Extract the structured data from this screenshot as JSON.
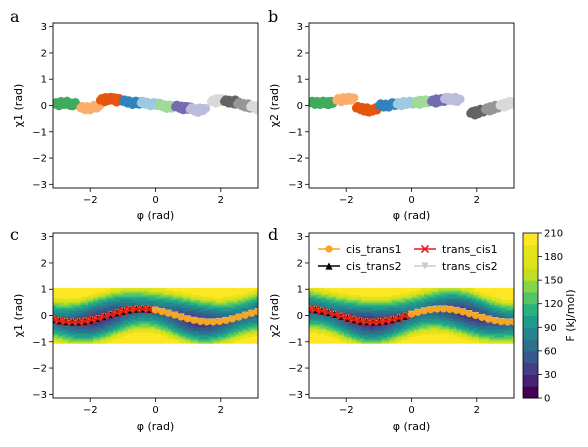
{
  "figure": {
    "panels": [
      {
        "letter": "a",
        "xlabel": "φ (rad)",
        "ylabel": "χ1 (rad)"
      },
      {
        "letter": "b",
        "xlabel": "φ (rad)",
        "ylabel": "χ2 (rad)"
      },
      {
        "letter": "c",
        "xlabel": "φ (rad)",
        "ylabel": "χ1 (rad)"
      },
      {
        "letter": "d",
        "xlabel": "φ (rad)",
        "ylabel": "χ2 (rad)"
      }
    ],
    "colorbar": {
      "label": "F (kJ/mol)",
      "ticks": [
        "0",
        "30",
        "60",
        "90",
        "120",
        "150",
        "180",
        "210"
      ],
      "levels": [
        0,
        15,
        30,
        45,
        60,
        75,
        90,
        105,
        120,
        135,
        150,
        165,
        180,
        195,
        210
      ]
    },
    "colors": {
      "cis_trans1": "#f5a623",
      "cis_trans2": "#000000",
      "trans_cis1": "#e41a1c",
      "trans_cis2": "#cccccc"
    }
  },
  "chart_data": [
    {
      "panel": "a",
      "type": "scatter",
      "x_ticks": [
        "−2",
        "0",
        "2"
      ],
      "y_ticks": [
        "−3",
        "−2",
        "−1",
        "0",
        "1",
        "2",
        "3"
      ],
      "xlim": [
        -3.14,
        3.14
      ],
      "ylim": [
        -3.14,
        3.14
      ],
      "clusters": [
        {
          "color": "#41ab5d",
          "x": [
            -3.0,
            -2.8,
            -2.6,
            -2.5
          ],
          "y": [
            0.05,
            0.1,
            0.05,
            0.05
          ]
        },
        {
          "color": "#fdae6b",
          "x": [
            -2.2,
            -2.0,
            -1.8
          ],
          "y": [
            -0.1,
            -0.1,
            -0.05
          ]
        },
        {
          "color": "#e6550d",
          "x": [
            -1.6,
            -1.45,
            -1.3,
            -1.15
          ],
          "y": [
            0.2,
            0.25,
            0.25,
            0.2
          ]
        },
        {
          "color": "#3182bd",
          "x": [
            -0.9,
            -0.7,
            -0.5
          ],
          "y": [
            0.15,
            0.1,
            0.1
          ]
        },
        {
          "color": "#9ecae1",
          "x": [
            -0.35,
            -0.15,
            0.05
          ],
          "y": [
            0.1,
            0.05,
            0.05
          ]
        },
        {
          "color": "#a1d99b",
          "x": [
            0.2,
            0.35,
            0.5
          ],
          "y": [
            0.0,
            -0.05,
            -0.05
          ]
        },
        {
          "color": "#756bb1",
          "x": [
            0.7,
            0.85,
            1.0
          ],
          "y": [
            -0.05,
            -0.1,
            -0.1
          ]
        },
        {
          "color": "#bcbddc",
          "x": [
            1.15,
            1.3,
            1.45
          ],
          "y": [
            -0.15,
            -0.2,
            -0.15
          ]
        },
        {
          "color": "#d9d9d9",
          "x": [
            1.8,
            1.95,
            2.05
          ],
          "y": [
            0.15,
            0.2,
            0.2
          ]
        },
        {
          "color": "#636363",
          "x": [
            2.2,
            2.35,
            2.45
          ],
          "y": [
            0.15,
            0.15,
            0.1
          ]
        },
        {
          "color": "#969696",
          "x": [
            2.6,
            2.75,
            2.9
          ],
          "y": [
            0.05,
            0.0,
            -0.05
          ]
        },
        {
          "color": "#d9d9d9",
          "x": [
            3.0,
            3.1
          ],
          "y": [
            -0.05,
            -0.1
          ]
        }
      ]
    },
    {
      "panel": "b",
      "type": "scatter",
      "x_ticks": [
        "−2",
        "0",
        "2"
      ],
      "y_ticks": [
        "−3",
        "−2",
        "−1",
        "0",
        "1",
        "2",
        "3"
      ],
      "xlim": [
        -3.14,
        3.14
      ],
      "ylim": [
        -3.14,
        3.14
      ],
      "clusters": [
        {
          "color": "#41ab5d",
          "x": [
            -3.0,
            -2.8,
            -2.6,
            -2.5
          ],
          "y": [
            0.1,
            0.1,
            0.1,
            0.1
          ]
        },
        {
          "color": "#fdae6b",
          "x": [
            -2.2,
            -2.0,
            -1.85
          ],
          "y": [
            0.2,
            0.25,
            0.25
          ]
        },
        {
          "color": "#e6550d",
          "x": [
            -1.6,
            -1.45,
            -1.3,
            -1.15
          ],
          "y": [
            -0.1,
            -0.15,
            -0.2,
            -0.15
          ]
        },
        {
          "color": "#3182bd",
          "x": [
            -0.9,
            -0.7,
            -0.5
          ],
          "y": [
            0.0,
            0.0,
            0.05
          ]
        },
        {
          "color": "#9ecae1",
          "x": [
            -0.35,
            -0.15,
            0.05
          ],
          "y": [
            0.05,
            0.1,
            0.1
          ]
        },
        {
          "color": "#a1d99b",
          "x": [
            0.2,
            0.35,
            0.5
          ],
          "y": [
            0.1,
            0.15,
            0.15
          ]
        },
        {
          "color": "#756bb1",
          "x": [
            0.7,
            0.85,
            1.0
          ],
          "y": [
            0.15,
            0.2,
            0.2
          ]
        },
        {
          "color": "#bcbddc",
          "x": [
            1.1,
            1.25,
            1.4
          ],
          "y": [
            0.25,
            0.25,
            0.2
          ]
        },
        {
          "color": "#636363",
          "x": [
            1.9,
            2.05,
            2.2
          ],
          "y": [
            -0.3,
            -0.25,
            -0.2
          ]
        },
        {
          "color": "#969696",
          "x": [
            2.35,
            2.5,
            2.65
          ],
          "y": [
            -0.15,
            -0.1,
            -0.05
          ]
        },
        {
          "color": "#d9d9d9",
          "x": [
            2.8,
            2.95,
            3.1
          ],
          "y": [
            0.0,
            0.05,
            0.1
          ]
        }
      ]
    },
    {
      "panel": "c",
      "type": "line",
      "x_ticks": [
        "−2",
        "0",
        "2"
      ],
      "y_ticks": [
        "−3",
        "−2",
        "−1",
        "0",
        "1",
        "2",
        "3"
      ],
      "xlim": [
        -3.14,
        3.14
      ],
      "ylim": [
        -3.14,
        3.14
      ],
      "contour_phase": 0.5,
      "series": [
        {
          "name": "cis_trans1",
          "marker": "circle",
          "phase": 0.5,
          "x_range": [
            -3.14,
            0.0
          ]
        },
        {
          "name": "cis_trans2",
          "marker": "triangle",
          "phase": 0.5,
          "x_range": [
            -3.14,
            0.0
          ]
        },
        {
          "name": "trans_cis1",
          "marker": "x",
          "phase": 0.5,
          "x_range": [
            -3.14,
            0.0
          ]
        },
        {
          "name": "trans_cis2",
          "marker": "tri_down",
          "phase": 0.5,
          "x_range": [
            0.0,
            3.14
          ]
        },
        {
          "name": "cis_trans1",
          "marker": "circle",
          "phase": 0.5,
          "x_range": [
            0.0,
            3.14
          ]
        }
      ]
    },
    {
      "panel": "d",
      "type": "line",
      "x_ticks": [
        "−2",
        "0",
        "2"
      ],
      "y_ticks": [
        "−3",
        "−2",
        "−1",
        "0",
        "1",
        "2",
        "3"
      ],
      "xlim": [
        -3.14,
        3.14
      ],
      "ylim": [
        -3.14,
        3.14
      ],
      "contour_phase": -0.5,
      "legend": {
        "position": "top",
        "entries": [
          "cis_trans1",
          "cis_trans2",
          "trans_cis1",
          "trans_cis2"
        ]
      },
      "series": [
        {
          "name": "cis_trans1",
          "marker": "circle",
          "phase": -0.5,
          "x_range": [
            -3.14,
            0.0
          ]
        },
        {
          "name": "cis_trans2",
          "marker": "triangle",
          "phase": -0.5,
          "x_range": [
            -3.14,
            0.0
          ]
        },
        {
          "name": "trans_cis1",
          "marker": "x",
          "phase": -0.5,
          "x_range": [
            -3.14,
            0.0
          ]
        },
        {
          "name": "trans_cis2",
          "marker": "tri_down",
          "phase": -0.5,
          "x_range": [
            0.0,
            3.14
          ]
        },
        {
          "name": "cis_trans1",
          "marker": "circle",
          "phase": -0.5,
          "x_range": [
            0.0,
            3.14
          ]
        }
      ]
    }
  ]
}
